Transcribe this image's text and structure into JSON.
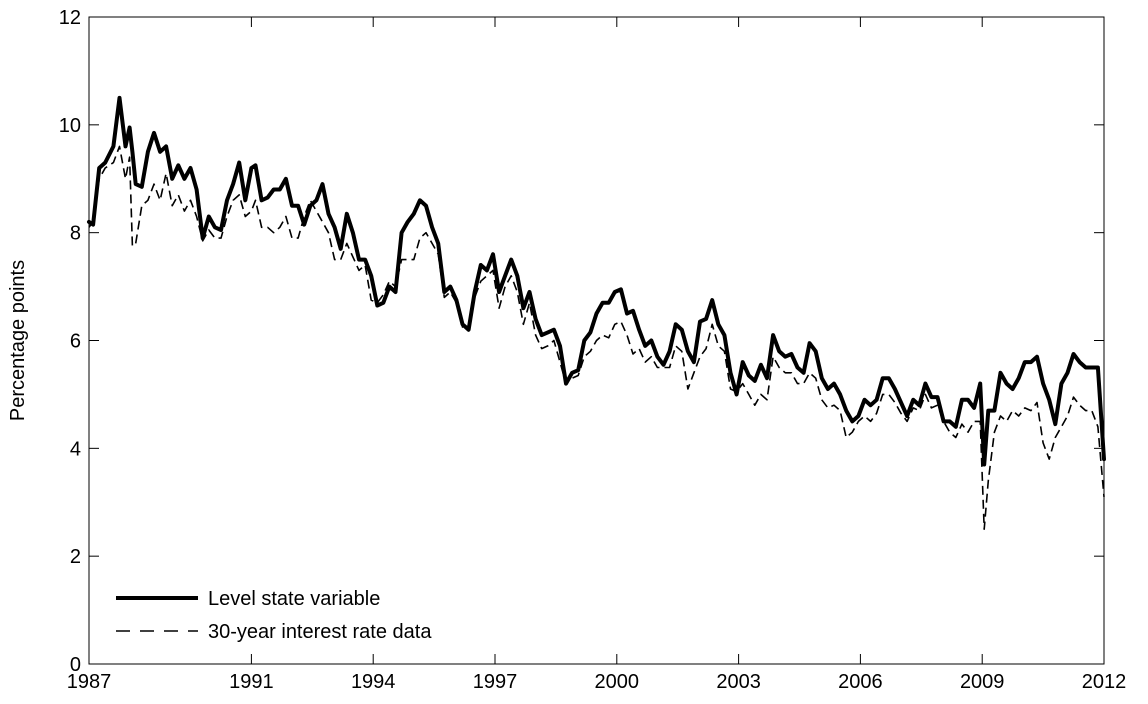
{
  "chart_data": {
    "type": "line",
    "title": "",
    "xlabel": "",
    "ylabel": "Percentage points",
    "xlim": [
      1987,
      2012
    ],
    "ylim": [
      0,
      12
    ],
    "xticks": [
      1987,
      1991,
      1994,
      1997,
      2000,
      2003,
      2006,
      2009,
      2012
    ],
    "yticks": [
      0,
      2,
      4,
      6,
      8,
      10,
      12
    ],
    "grid": false,
    "legend_position": "bottom-left",
    "series": [
      {
        "name": "Level state variable",
        "style": "solid-thick",
        "color": "#000000",
        "x": [
          1987.0,
          1987.1,
          1987.25,
          1987.4,
          1987.6,
          1987.75,
          1987.9,
          1988.0,
          1988.07,
          1988.15,
          1988.3,
          1988.45,
          1988.6,
          1988.75,
          1988.9,
          1989.05,
          1989.2,
          1989.35,
          1989.5,
          1989.65,
          1989.8,
          1989.95,
          1990.1,
          1990.25,
          1990.4,
          1990.55,
          1990.7,
          1990.85,
          1991.0,
          1991.1,
          1991.25,
          1991.4,
          1991.55,
          1991.7,
          1991.85,
          1992.0,
          1992.15,
          1992.3,
          1992.45,
          1992.6,
          1992.75,
          1992.9,
          1993.05,
          1993.2,
          1993.35,
          1993.5,
          1993.65,
          1993.8,
          1993.95,
          1994.1,
          1994.25,
          1994.4,
          1994.55,
          1994.7,
          1994.85,
          1995.0,
          1995.15,
          1995.3,
          1995.45,
          1995.6,
          1995.75,
          1995.9,
          1996.05,
          1996.2,
          1996.35,
          1996.5,
          1996.65,
          1996.8,
          1996.95,
          1997.1,
          1997.25,
          1997.4,
          1997.55,
          1997.7,
          1997.85,
          1998.0,
          1998.15,
          1998.3,
          1998.45,
          1998.6,
          1998.75,
          1998.9,
          1999.05,
          1999.2,
          1999.35,
          1999.5,
          1999.65,
          1999.8,
          1999.95,
          2000.1,
          2000.25,
          2000.4,
          2000.55,
          2000.7,
          2000.85,
          2001.0,
          2001.15,
          2001.3,
          2001.45,
          2001.6,
          2001.75,
          2001.9,
          2002.05,
          2002.2,
          2002.35,
          2002.5,
          2002.65,
          2002.8,
          2002.95,
          2003.1,
          2003.25,
          2003.4,
          2003.55,
          2003.7,
          2003.85,
          2004.0,
          2004.15,
          2004.3,
          2004.45,
          2004.6,
          2004.75,
          2004.9,
          2005.05,
          2005.2,
          2005.35,
          2005.5,
          2005.65,
          2005.8,
          2005.95,
          2006.1,
          2006.25,
          2006.4,
          2006.55,
          2006.7,
          2006.85,
          2007.0,
          2007.15,
          2007.3,
          2007.45,
          2007.6,
          2007.75,
          2007.9,
          2008.05,
          2008.2,
          2008.35,
          2008.5,
          2008.65,
          2008.8,
          2008.95,
          2009.05,
          2009.15,
          2009.3,
          2009.45,
          2009.6,
          2009.75,
          2009.9,
          2010.05,
          2010.2,
          2010.35,
          2010.5,
          2010.65,
          2010.8,
          2010.95,
          2011.1,
          2011.25,
          2011.4,
          2011.55,
          2011.7,
          2011.85,
          2012.0
        ],
        "values": [
          8.2,
          8.15,
          9.2,
          9.3,
          9.6,
          10.5,
          9.6,
          9.95,
          9.5,
          8.9,
          8.85,
          9.5,
          9.85,
          9.5,
          9.6,
          9.0,
          9.25,
          9.0,
          9.2,
          8.8,
          7.9,
          8.3,
          8.1,
          8.05,
          8.6,
          8.9,
          9.3,
          8.6,
          9.2,
          9.25,
          8.6,
          8.65,
          8.8,
          8.8,
          9.0,
          8.5,
          8.5,
          8.15,
          8.5,
          8.6,
          8.9,
          8.35,
          8.1,
          7.7,
          8.35,
          8.0,
          7.5,
          7.5,
          7.2,
          6.65,
          6.7,
          7.0,
          6.9,
          8.0,
          8.2,
          8.35,
          8.6,
          8.5,
          8.1,
          7.8,
          6.9,
          7.0,
          6.75,
          6.3,
          6.2,
          6.9,
          7.4,
          7.3,
          7.6,
          6.9,
          7.2,
          7.5,
          7.2,
          6.6,
          6.9,
          6.4,
          6.1,
          6.15,
          6.2,
          5.9,
          5.2,
          5.4,
          5.45,
          6.0,
          6.15,
          6.5,
          6.7,
          6.7,
          6.9,
          6.95,
          6.5,
          6.55,
          6.2,
          5.9,
          6.0,
          5.7,
          5.55,
          5.8,
          6.3,
          6.2,
          5.8,
          5.6,
          6.35,
          6.4,
          6.75,
          6.3,
          6.1,
          5.4,
          5.0,
          5.6,
          5.35,
          5.25,
          5.55,
          5.3,
          6.1,
          5.8,
          5.7,
          5.75,
          5.5,
          5.4,
          5.95,
          5.8,
          5.3,
          5.1,
          5.2,
          5.0,
          4.7,
          4.5,
          4.6,
          4.9,
          4.8,
          4.9,
          5.3,
          5.3,
          5.1,
          4.85,
          4.6,
          4.9,
          4.8,
          5.2,
          4.95,
          4.95,
          4.5,
          4.5,
          4.4,
          4.9,
          4.9,
          4.75,
          5.2,
          3.7,
          4.7,
          4.7,
          5.4,
          5.2,
          5.1,
          5.3,
          5.6,
          5.6,
          5.7,
          5.2,
          4.9,
          4.45,
          5.2,
          5.4,
          5.75,
          5.6,
          5.5,
          5.5,
          5.5,
          3.8
        ]
      },
      {
        "name": "30-year interest rate data",
        "style": "dashed",
        "color": "#000000",
        "x": [
          1987.0,
          1987.1,
          1987.25,
          1987.4,
          1987.6,
          1987.75,
          1987.9,
          1988.0,
          1988.07,
          1988.15,
          1988.3,
          1988.45,
          1988.6,
          1988.75,
          1988.9,
          1989.05,
          1989.2,
          1989.35,
          1989.5,
          1989.65,
          1989.8,
          1989.95,
          1990.1,
          1990.25,
          1990.4,
          1990.55,
          1990.7,
          1990.85,
          1991.0,
          1991.1,
          1991.25,
          1991.4,
          1991.55,
          1991.7,
          1991.85,
          1992.0,
          1992.15,
          1992.3,
          1992.45,
          1992.6,
          1992.75,
          1992.9,
          1993.05,
          1993.2,
          1993.35,
          1993.5,
          1993.65,
          1993.8,
          1993.95,
          1994.1,
          1994.25,
          1994.4,
          1994.55,
          1994.7,
          1994.85,
          1995.0,
          1995.15,
          1995.3,
          1995.45,
          1995.6,
          1995.75,
          1995.9,
          1996.05,
          1996.2,
          1996.35,
          1996.5,
          1996.65,
          1996.8,
          1996.95,
          1997.1,
          1997.25,
          1997.4,
          1997.55,
          1997.7,
          1997.85,
          1998.0,
          1998.15,
          1998.3,
          1998.45,
          1998.6,
          1998.75,
          1998.9,
          1999.05,
          1999.2,
          1999.35,
          1999.5,
          1999.65,
          1999.8,
          1999.95,
          2000.1,
          2000.25,
          2000.4,
          2000.55,
          2000.7,
          2000.85,
          2001.0,
          2001.15,
          2001.3,
          2001.45,
          2001.6,
          2001.75,
          2001.9,
          2002.05,
          2002.2,
          2002.35,
          2002.5,
          2002.65,
          2002.8,
          2002.95,
          2003.1,
          2003.25,
          2003.4,
          2003.55,
          2003.7,
          2003.85,
          2004.0,
          2004.15,
          2004.3,
          2004.45,
          2004.6,
          2004.75,
          2004.9,
          2005.05,
          2005.2,
          2005.35,
          2005.5,
          2005.65,
          2005.8,
          2005.95,
          2006.1,
          2006.25,
          2006.4,
          2006.55,
          2006.7,
          2006.85,
          2007.0,
          2007.15,
          2007.3,
          2007.45,
          2007.6,
          2007.75,
          2007.9,
          2008.05,
          2008.2,
          2008.35,
          2008.5,
          2008.65,
          2008.8,
          2008.95,
          2009.05,
          2009.15,
          2009.3,
          2009.45,
          2009.6,
          2009.75,
          2009.9,
          2010.05,
          2010.2,
          2010.35,
          2010.5,
          2010.65,
          2010.8,
          2010.95,
          2011.1,
          2011.25,
          2011.4,
          2011.55,
          2011.7,
          2011.85,
          2012.0
        ],
        "values": [
          8.1,
          8.2,
          9.0,
          9.2,
          9.3,
          9.6,
          9.0,
          9.4,
          7.75,
          7.8,
          8.5,
          8.6,
          8.9,
          8.6,
          9.1,
          8.5,
          8.7,
          8.4,
          8.6,
          8.3,
          7.85,
          8.05,
          7.9,
          7.9,
          8.3,
          8.6,
          8.7,
          8.3,
          8.4,
          8.6,
          8.1,
          8.1,
          8.0,
          8.1,
          8.3,
          7.9,
          7.9,
          8.3,
          8.6,
          8.4,
          8.2,
          8.0,
          7.5,
          7.5,
          7.8,
          7.55,
          7.3,
          7.4,
          6.75,
          6.7,
          6.85,
          7.1,
          7.0,
          7.5,
          7.5,
          7.5,
          7.9,
          8.0,
          7.8,
          7.6,
          6.8,
          6.9,
          6.7,
          6.25,
          6.3,
          6.8,
          7.1,
          7.2,
          7.3,
          6.6,
          7.0,
          7.2,
          6.9,
          6.3,
          6.7,
          6.1,
          5.85,
          5.9,
          6.0,
          5.6,
          5.2,
          5.3,
          5.35,
          5.7,
          5.8,
          6.0,
          6.1,
          6.05,
          6.3,
          6.35,
          6.1,
          5.75,
          5.85,
          5.6,
          5.7,
          5.5,
          5.5,
          5.5,
          5.9,
          5.8,
          5.1,
          5.4,
          5.7,
          5.85,
          6.3,
          5.9,
          5.8,
          5.1,
          5.05,
          5.2,
          5.0,
          4.8,
          5.0,
          4.9,
          5.7,
          5.5,
          5.4,
          5.4,
          5.2,
          5.2,
          5.4,
          5.3,
          4.9,
          4.75,
          4.8,
          4.7,
          4.2,
          4.3,
          4.5,
          4.6,
          4.5,
          4.65,
          5.0,
          5.0,
          4.85,
          4.65,
          4.5,
          4.75,
          4.7,
          5.0,
          4.75,
          4.8,
          4.5,
          4.3,
          4.2,
          4.45,
          4.3,
          4.5,
          4.5,
          2.5,
          3.4,
          4.3,
          4.6,
          4.5,
          4.7,
          4.6,
          4.75,
          4.7,
          4.85,
          4.1,
          3.8,
          4.2,
          4.4,
          4.6,
          4.95,
          4.8,
          4.7,
          4.7,
          4.4,
          3.1
        ]
      }
    ]
  }
}
